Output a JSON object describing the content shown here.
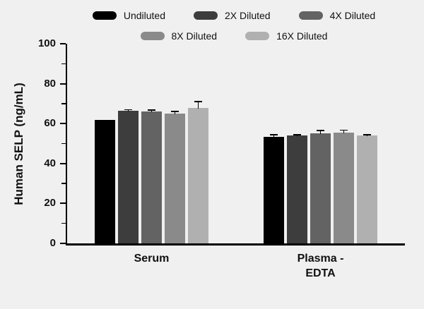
{
  "chart_data": {
    "type": "bar",
    "title": "",
    "xlabel": "",
    "ylabel": "Human SELP (ng/mL)",
    "ylim": [
      0,
      100
    ],
    "yticks": [
      0,
      20,
      40,
      60,
      80,
      100
    ],
    "minor_tick_step": 10,
    "grid": false,
    "legend_position": "top",
    "categories": [
      "Serum",
      "Plasma -\nEDTA"
    ],
    "series": [
      {
        "name": "Undiluted",
        "color": "#000000",
        "values": [
          62.0,
          53.5
        ],
        "errors": [
          0.0,
          0.8
        ]
      },
      {
        "name": "2X Diluted",
        "color": "#3d3d3d",
        "values": [
          66.5,
          54.0
        ],
        "errors": [
          0.5,
          0.4
        ]
      },
      {
        "name": "4X Diluted",
        "color": "#636363",
        "values": [
          66.0,
          55.0
        ],
        "errors": [
          0.7,
          1.5
        ]
      },
      {
        "name": "8X Diluted",
        "color": "#8a8a8a",
        "values": [
          65.0,
          55.5
        ],
        "errors": [
          1.2,
          1.2
        ]
      },
      {
        "name": "16X Diluted",
        "color": "#b0b0b0",
        "values": [
          68.0,
          54.0
        ],
        "errors": [
          3.0,
          0.4
        ]
      }
    ]
  }
}
